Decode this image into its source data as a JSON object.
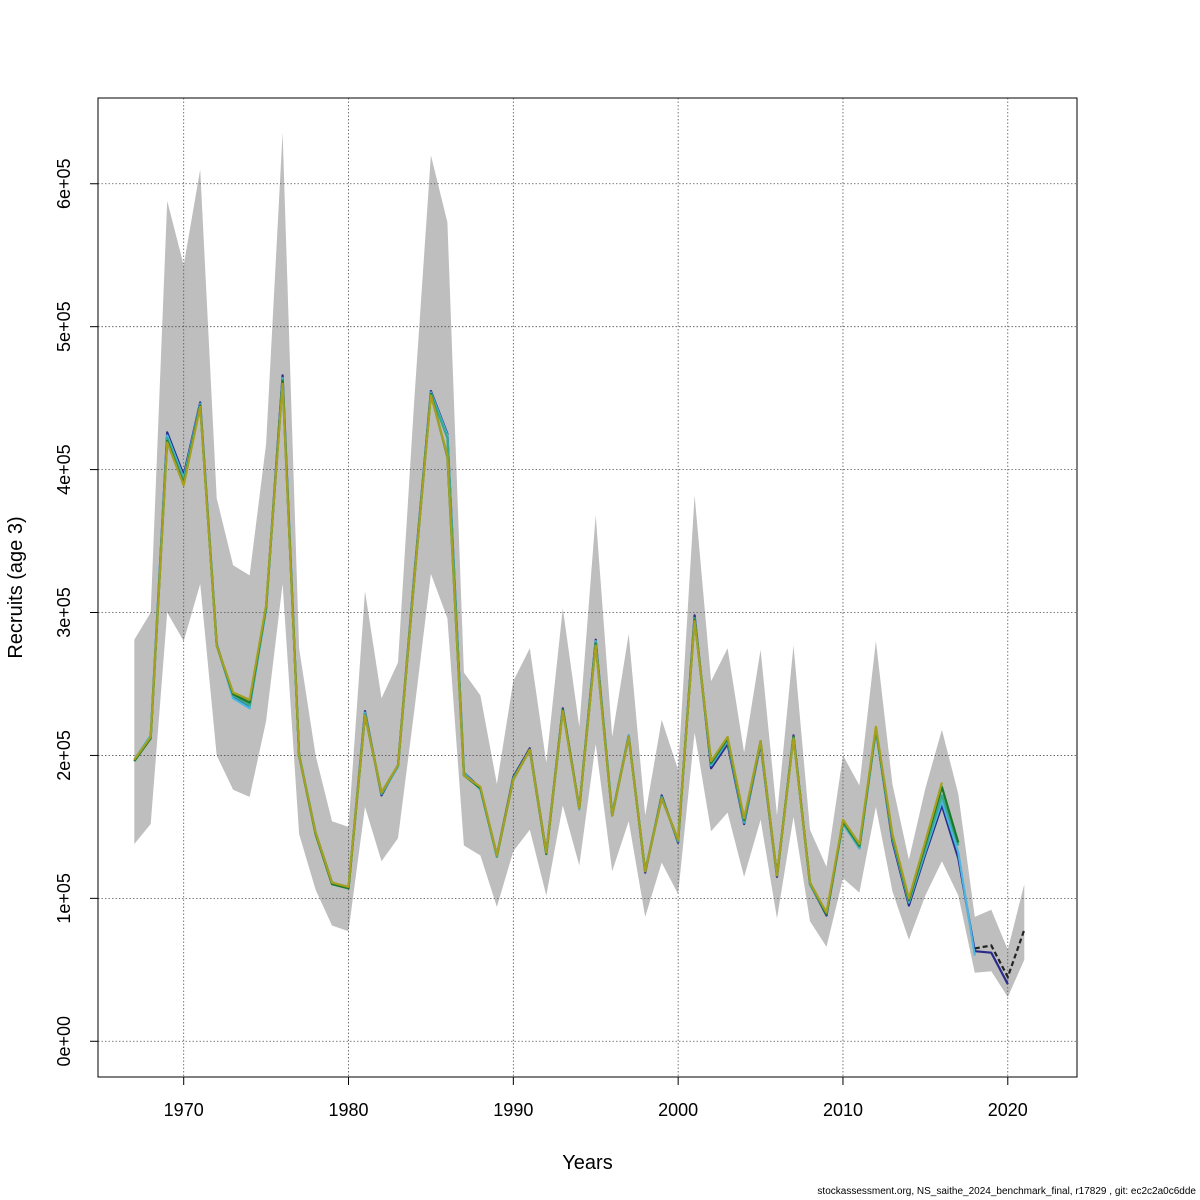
{
  "chart_data": {
    "type": "line",
    "title": "",
    "xlabel": "Years",
    "ylabel": "Recruits (age 3)",
    "xlim": [
      1964.8,
      2024.2
    ],
    "ylim": [
      -25000,
      660000
    ],
    "x_ticks": [
      1970,
      1980,
      1990,
      2000,
      2010,
      2020
    ],
    "x_tick_labels": [
      "1970",
      "1980",
      "1990",
      "2000",
      "2010",
      "2020"
    ],
    "y_ticks": [
      0,
      100000,
      200000,
      300000,
      400000,
      500000,
      600000
    ],
    "y_tick_labels": [
      "0e+00",
      "1e+05",
      "2e+05",
      "3e+05",
      "4e+05",
      "5e+05",
      "6e+05"
    ],
    "grid": true,
    "colors": {
      "band": "#bebebe",
      "grid": "#555555",
      "series": [
        "#2a2a8a",
        "#4bb6e0",
        "#3aa88a",
        "#1a7a2a",
        "#a5a020"
      ],
      "terminal": "#222222"
    },
    "band": {
      "x": [
        1967,
        1968,
        1969,
        1970,
        1971,
        1972,
        1973,
        1974,
        1975,
        1976,
        1977,
        1978,
        1979,
        1980,
        1981,
        1982,
        1983,
        1984,
        1985,
        1986,
        1987,
        1988,
        1989,
        1990,
        1991,
        1992,
        1993,
        1994,
        1995,
        1996,
        1997,
        1998,
        1999,
        2000,
        2001,
        2002,
        2003,
        2004,
        2005,
        2006,
        2007,
        2008,
        2009,
        2010,
        2011,
        2012,
        2013,
        2014,
        2015,
        2016,
        2017,
        2018,
        2019,
        2020,
        2021
      ],
      "lower": [
        138000,
        152000,
        300000,
        280000,
        320000,
        200000,
        176000,
        171000,
        224000,
        320000,
        145000,
        106000,
        81000,
        77000,
        164000,
        126000,
        142000,
        232000,
        327000,
        296000,
        137000,
        130000,
        94000,
        133000,
        148000,
        102000,
        165000,
        123000,
        208000,
        119000,
        154000,
        87000,
        125000,
        103000,
        216000,
        147000,
        160000,
        115000,
        155000,
        86000,
        157000,
        84000,
        66000,
        114000,
        104000,
        164000,
        105000,
        71000,
        102000,
        126000,
        102000,
        48000,
        49000,
        31000,
        57000
      ],
      "upper": [
        281000,
        300000,
        588000,
        543000,
        610000,
        380000,
        333000,
        326000,
        418000,
        636000,
        275000,
        200000,
        154000,
        150000,
        315000,
        240000,
        265000,
        450000,
        620000,
        573000,
        258000,
        242000,
        180000,
        252000,
        275000,
        195000,
        303000,
        220000,
        368000,
        213000,
        285000,
        158000,
        225000,
        190000,
        382000,
        252000,
        275000,
        202000,
        274000,
        158000,
        277000,
        148000,
        122000,
        200000,
        179000,
        280000,
        180000,
        127000,
        177000,
        218000,
        173000,
        87000,
        92000,
        64000,
        110000
      ]
    },
    "series": [
      {
        "values": [
          197000,
          213000,
          426000,
          396000,
          447000,
          278000,
          241000,
          234000,
          303000,
          466000,
          200000,
          146000,
          111000,
          107000,
          231000,
          172000,
          193000,
          327000,
          455000,
          425000,
          188000,
          177000,
          130000,
          185000,
          205000,
          132000,
          233000,
          163000,
          281000,
          158000,
          214000,
          118000,
          172000,
          139000,
          298000,
          191000,
          208000,
          152000,
          208000,
          115000,
          214000,
          110000,
          88000,
          153000,
          135000,
          218000,
          140000,
          95000,
          131000,
          165000,
          128000,
          63000,
          62000,
          40000,
          null
        ]
      },
      {
        "values": [
          197000,
          214000,
          424000,
          394000,
          446000,
          278000,
          240000,
          233000,
          302000,
          464000,
          201000,
          146000,
          110000,
          107000,
          230000,
          173000,
          192000,
          326000,
          454000,
          424000,
          188000,
          176000,
          129000,
          184000,
          204000,
          131000,
          232000,
          162000,
          280000,
          159000,
          214000,
          119000,
          171000,
          140000,
          296000,
          193000,
          210000,
          153000,
          209000,
          116000,
          213000,
          110000,
          89000,
          152000,
          135000,
          217000,
          142000,
          97000,
          133000,
          168000,
          132000,
          60000,
          null,
          null,
          null
        ]
      },
      {
        "values": [
          196000,
          213000,
          422000,
          392000,
          445000,
          277000,
          242000,
          235000,
          303000,
          463000,
          200000,
          145000,
          110000,
          107000,
          229000,
          173000,
          193000,
          325000,
          453000,
          422000,
          187000,
          177000,
          129000,
          184000,
          204000,
          131000,
          232000,
          163000,
          279000,
          159000,
          213000,
          119000,
          171000,
          140000,
          296000,
          194000,
          211000,
          154000,
          209000,
          116000,
          213000,
          110000,
          89000,
          153000,
          136000,
          218000,
          143000,
          98000,
          135000,
          172000,
          137000,
          null,
          null,
          null,
          null
        ]
      },
      {
        "values": [
          196000,
          212000,
          420000,
          390000,
          445000,
          277000,
          243000,
          237000,
          304000,
          462000,
          200000,
          145000,
          110000,
          107000,
          228000,
          174000,
          193000,
          324000,
          453000,
          409000,
          186000,
          177000,
          130000,
          183000,
          204000,
          131000,
          232000,
          163000,
          278000,
          158000,
          213000,
          119000,
          170000,
          141000,
          295000,
          195000,
          212000,
          155000,
          210000,
          116000,
          213000,
          111000,
          89000,
          154000,
          137000,
          219000,
          144000,
          99000,
          138000,
          178000,
          139000,
          null,
          null,
          null,
          null
        ]
      },
      {
        "values": [
          197000,
          213000,
          419000,
          389000,
          444000,
          277000,
          244000,
          239000,
          305000,
          460000,
          200000,
          146000,
          111000,
          108000,
          228000,
          174000,
          193000,
          324000,
          452000,
          410000,
          186000,
          178000,
          130000,
          183000,
          204000,
          132000,
          231000,
          163000,
          277000,
          158000,
          213000,
          119000,
          170000,
          141000,
          294000,
          196000,
          213000,
          156000,
          210000,
          116000,
          212000,
          111000,
          90000,
          155000,
          138000,
          220000,
          145000,
          100000,
          140000,
          181000,
          null,
          null,
          null,
          null,
          null
        ]
      }
    ],
    "terminal_series": {
      "x": [
        2018,
        2019,
        2020,
        2021
      ],
      "values": [
        65000,
        67000,
        45000,
        78000
      ]
    }
  },
  "footer": "stockassessment.org, NS_saithe_2024_benchmark_final, r17829 , git: ec2c2a0c6dde"
}
